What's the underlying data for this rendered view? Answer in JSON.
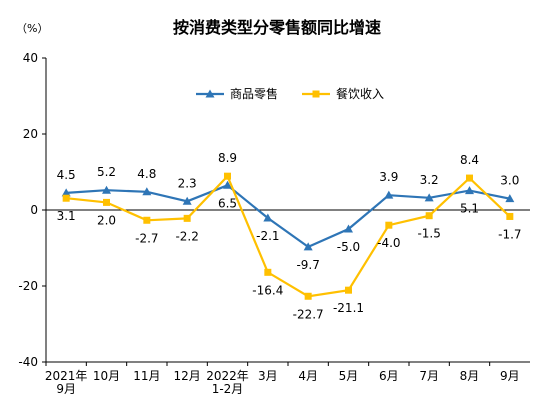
{
  "chart_data": {
    "type": "line",
    "title": "按消费类型分零售额同比增速",
    "unit_label": "（%）",
    "categories": [
      [
        "2021年",
        "9月"
      ],
      [
        "10月"
      ],
      [
        "11月"
      ],
      [
        "12月"
      ],
      [
        "2022年",
        "1-2月"
      ],
      [
        "3月"
      ],
      [
        "4月"
      ],
      [
        "5月"
      ],
      [
        "6月"
      ],
      [
        "7月"
      ],
      [
        "8月"
      ],
      [
        "9月"
      ]
    ],
    "ylim": [
      -40,
      40
    ],
    "yticks": [
      -40,
      -20,
      0,
      20,
      40
    ],
    "grid": false,
    "legend_position": "top-center",
    "series": [
      {
        "name": "商品零售",
        "color": "#2e75b6",
        "marker": "triangle",
        "values": [
          4.5,
          5.2,
          4.8,
          2.3,
          6.5,
          -2.1,
          -9.7,
          -5.0,
          3.9,
          3.2,
          5.1,
          3.0
        ],
        "labels": [
          "4.5",
          "5.2",
          "4.8",
          "2.3",
          "6.5",
          "-2.1",
          "-9.7",
          "-5.0",
          "3.9",
          "3.2",
          "5.1",
          "3.0"
        ],
        "label_side": [
          "above",
          "above",
          "above",
          "above",
          "below",
          "below",
          "below",
          "below",
          "above",
          "above",
          "below",
          "above"
        ]
      },
      {
        "name": "餐饮收入",
        "color": "#ffc000",
        "marker": "square",
        "values": [
          3.1,
          2.0,
          -2.7,
          -2.2,
          8.9,
          -16.4,
          -22.7,
          -21.1,
          -4.0,
          -1.5,
          8.4,
          -1.7
        ],
        "labels": [
          "3.1",
          "2.0",
          "-2.7",
          "-2.2",
          "8.9",
          "-16.4",
          "-22.7",
          "-21.1",
          "-4.0",
          "-1.5",
          "8.4",
          "-1.7"
        ],
        "label_side": [
          "below",
          "below",
          "below",
          "below",
          "above",
          "below",
          "below",
          "below",
          "below",
          "below",
          "above",
          "below"
        ]
      }
    ]
  }
}
